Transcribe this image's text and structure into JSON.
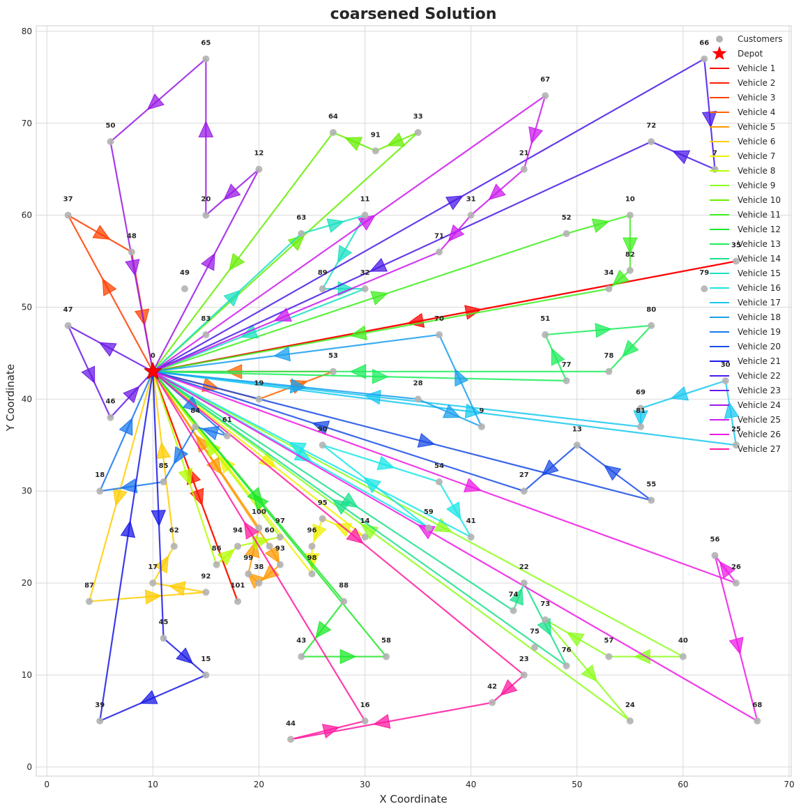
{
  "chart_data": {
    "type": "scatter",
    "title": "coarsened Solution",
    "xlabel": "X Coordinate",
    "ylabel": "Y Coordinate",
    "xlim": [
      -1,
      70.2
    ],
    "ylim": [
      -1,
      80.6
    ],
    "xticks": [
      0,
      10,
      20,
      30,
      40,
      50,
      60,
      70
    ],
    "yticks": [
      0,
      10,
      20,
      30,
      40,
      50,
      60,
      70,
      80
    ],
    "grid": true,
    "legend_position": "top-right",
    "depot": {
      "label": "Depot",
      "id": "0",
      "x": 10,
      "y": 43,
      "color": "#ff0000"
    },
    "customer_series": {
      "name": "Customers",
      "color": "#b3b3b3"
    },
    "customers": [
      {
        "id": "65",
        "x": 15,
        "y": 77
      },
      {
        "id": "66",
        "x": 62,
        "y": 77
      },
      {
        "id": "67",
        "x": 47,
        "y": 73
      },
      {
        "id": "50",
        "x": 6,
        "y": 68
      },
      {
        "id": "64",
        "x": 27,
        "y": 69
      },
      {
        "id": "33",
        "x": 35,
        "y": 69
      },
      {
        "id": "91",
        "x": 31,
        "y": 67
      },
      {
        "id": "72",
        "x": 57,
        "y": 68
      },
      {
        "id": "12",
        "x": 20,
        "y": 65
      },
      {
        "id": "21",
        "x": 45,
        "y": 65
      },
      {
        "id": "7",
        "x": 63,
        "y": 65
      },
      {
        "id": "37",
        "x": 2,
        "y": 60
      },
      {
        "id": "20",
        "x": 15,
        "y": 60
      },
      {
        "id": "63",
        "x": 24,
        "y": 58
      },
      {
        "id": "11",
        "x": 30,
        "y": 60
      },
      {
        "id": "31",
        "x": 40,
        "y": 60
      },
      {
        "id": "52",
        "x": 49,
        "y": 58
      },
      {
        "id": "10",
        "x": 55,
        "y": 60
      },
      {
        "id": "48",
        "x": 8,
        "y": 56
      },
      {
        "id": "71",
        "x": 37,
        "y": 56
      },
      {
        "id": "82",
        "x": 55,
        "y": 54
      },
      {
        "id": "35",
        "x": 65,
        "y": 55
      },
      {
        "id": "49",
        "x": 13,
        "y": 52
      },
      {
        "id": "89",
        "x": 26,
        "y": 52
      },
      {
        "id": "32",
        "x": 30,
        "y": 52
      },
      {
        "id": "34",
        "x": 53,
        "y": 52
      },
      {
        "id": "79",
        "x": 62,
        "y": 52
      },
      {
        "id": "47",
        "x": 2,
        "y": 48
      },
      {
        "id": "83",
        "x": 15,
        "y": 47
      },
      {
        "id": "70",
        "x": 37,
        "y": 47
      },
      {
        "id": "51",
        "x": 47,
        "y": 47
      },
      {
        "id": "80",
        "x": 57,
        "y": 48
      },
      {
        "id": "53",
        "x": 27,
        "y": 43
      },
      {
        "id": "77",
        "x": 49,
        "y": 42
      },
      {
        "id": "78",
        "x": 53,
        "y": 43
      },
      {
        "id": "30",
        "x": 64,
        "y": 42
      },
      {
        "id": "19",
        "x": 20,
        "y": 40
      },
      {
        "id": "28",
        "x": 35,
        "y": 40
      },
      {
        "id": "69",
        "x": 56,
        "y": 39
      },
      {
        "id": "46",
        "x": 6,
        "y": 38
      },
      {
        "id": "9",
        "x": 41,
        "y": 37
      },
      {
        "id": "81",
        "x": 56,
        "y": 37
      },
      {
        "id": "84",
        "x": 14,
        "y": 37
      },
      {
        "id": "61",
        "x": 17,
        "y": 36
      },
      {
        "id": "90",
        "x": 26,
        "y": 35
      },
      {
        "id": "13",
        "x": 50,
        "y": 35
      },
      {
        "id": "25",
        "x": 65,
        "y": 35
      },
      {
        "id": "85",
        "x": 11,
        "y": 31
      },
      {
        "id": "54",
        "x": 37,
        "y": 31
      },
      {
        "id": "18",
        "x": 5,
        "y": 30
      },
      {
        "id": "27",
        "x": 45,
        "y": 30
      },
      {
        "id": "55",
        "x": 57,
        "y": 29
      },
      {
        "id": "97",
        "x": 22,
        "y": 25
      },
      {
        "id": "100",
        "x": 20,
        "y": 26
      },
      {
        "id": "95",
        "x": 26,
        "y": 27
      },
      {
        "id": "59",
        "x": 36,
        "y": 26
      },
      {
        "id": "41",
        "x": 40,
        "y": 25
      },
      {
        "id": "14",
        "x": 30,
        "y": 25
      },
      {
        "id": "62",
        "x": 12,
        "y": 24
      },
      {
        "id": "60",
        "x": 21,
        "y": 24
      },
      {
        "id": "94",
        "x": 18,
        "y": 24
      },
      {
        "id": "96",
        "x": 25,
        "y": 24
      },
      {
        "id": "56",
        "x": 63,
        "y": 23
      },
      {
        "id": "86",
        "x": 16,
        "y": 22
      },
      {
        "id": "93",
        "x": 22,
        "y": 22
      },
      {
        "id": "99",
        "x": 19,
        "y": 21
      },
      {
        "id": "98",
        "x": 25,
        "y": 21
      },
      {
        "id": "38",
        "x": 20,
        "y": 20
      },
      {
        "id": "26",
        "x": 65,
        "y": 20
      },
      {
        "id": "17",
        "x": 10,
        "y": 20
      },
      {
        "id": "92",
        "x": 15,
        "y": 19
      },
      {
        "id": "22",
        "x": 45,
        "y": 20
      },
      {
        "id": "87",
        "x": 4,
        "y": 18
      },
      {
        "id": "101",
        "x": 18,
        "y": 18
      },
      {
        "id": "88",
        "x": 28,
        "y": 18
      },
      {
        "id": "74",
        "x": 44,
        "y": 17
      },
      {
        "id": "73",
        "x": 47,
        "y": 16
      },
      {
        "id": "45",
        "x": 11,
        "y": 14
      },
      {
        "id": "75",
        "x": 46,
        "y": 13
      },
      {
        "id": "43",
        "x": 24,
        "y": 12
      },
      {
        "id": "58",
        "x": 32,
        "y": 12
      },
      {
        "id": "57",
        "x": 53,
        "y": 12
      },
      {
        "id": "40",
        "x": 60,
        "y": 12
      },
      {
        "id": "76",
        "x": 49,
        "y": 11
      },
      {
        "id": "15",
        "x": 15,
        "y": 10
      },
      {
        "id": "23",
        "x": 45,
        "y": 10
      },
      {
        "id": "42",
        "x": 42,
        "y": 7
      },
      {
        "id": "39",
        "x": 5,
        "y": 5
      },
      {
        "id": "16",
        "x": 30,
        "y": 5
      },
      {
        "id": "24",
        "x": 55,
        "y": 5
      },
      {
        "id": "68",
        "x": 67,
        "y": 5
      },
      {
        "id": "44",
        "x": 23,
        "y": 3
      }
    ],
    "series": [
      {
        "name": "Vehicle 1",
        "color": "#ff0000",
        "route": [
          "0",
          "35",
          "0"
        ]
      },
      {
        "name": "Vehicle 2",
        "color": "#ff1a00",
        "route": [
          "0",
          "101",
          "0"
        ]
      },
      {
        "name": "Vehicle 3",
        "color": "#ff4000",
        "route": [
          "0",
          "37",
          "48",
          "0"
        ]
      },
      {
        "name": "Vehicle 4",
        "color": "#ff6600",
        "route": [
          "0",
          "19",
          "53",
          "0"
        ]
      },
      {
        "name": "Vehicle 5",
        "color": "#ff9900",
        "route": [
          "0",
          "60",
          "93",
          "38",
          "99",
          "100",
          "0"
        ]
      },
      {
        "name": "Vehicle 6",
        "color": "#ffcc00",
        "route": [
          "0",
          "87",
          "92",
          "17",
          "62",
          "0"
        ]
      },
      {
        "name": "Vehicle 7",
        "color": "#f0f000",
        "route": [
          "0",
          "14",
          "95",
          "96",
          "98",
          "0"
        ]
      },
      {
        "name": "Vehicle 8",
        "color": "#b3ff00",
        "route": [
          "0",
          "86",
          "94",
          "97",
          "0"
        ]
      },
      {
        "name": "Vehicle 9",
        "color": "#8cff1a",
        "route": [
          "0",
          "40",
          "57",
          "73",
          "24",
          "0"
        ]
      },
      {
        "name": "Vehicle 10",
        "color": "#66ee00",
        "route": [
          "0",
          "33",
          "91",
          "64",
          "0"
        ]
      },
      {
        "name": "Vehicle 11",
        "color": "#40ee20",
        "route": [
          "0",
          "52",
          "10",
          "82",
          "34",
          "0"
        ]
      },
      {
        "name": "Vehicle 12",
        "color": "#1ee82a",
        "route": [
          "0",
          "88",
          "43",
          "58",
          "0"
        ]
      },
      {
        "name": "Vehicle 13",
        "color": "#1aee5a",
        "route": [
          "0",
          "77",
          "51",
          "80",
          "78",
          "0"
        ]
      },
      {
        "name": "Vehicle 14",
        "color": "#1ae08c",
        "route": [
          "0",
          "74",
          "22",
          "76",
          "0"
        ]
      },
      {
        "name": "Vehicle 15",
        "color": "#1ae0c0",
        "route": [
          "0",
          "63",
          "11",
          "89",
          "32",
          "0"
        ]
      },
      {
        "name": "Vehicle 16",
        "color": "#1ae6e6",
        "route": [
          "0",
          "59",
          "90",
          "54",
          "41",
          "0"
        ]
      },
      {
        "name": "Vehicle 17",
        "color": "#1ac8f0",
        "route": [
          "0",
          "25",
          "30",
          "69",
          "81",
          "0"
        ]
      },
      {
        "name": "Vehicle 18",
        "color": "#1aa0ee",
        "route": [
          "0",
          "28",
          "9",
          "70",
          "0"
        ]
      },
      {
        "name": "Vehicle 19",
        "color": "#1a78ee",
        "route": [
          "0",
          "61",
          "84",
          "85",
          "18",
          "0"
        ]
      },
      {
        "name": "Vehicle 20",
        "color": "#1a4ce6",
        "route": [
          "0",
          "55",
          "13",
          "27",
          "0"
        ]
      },
      {
        "name": "Vehicle 21",
        "color": "#1a1ae6",
        "route": [
          "0",
          "45",
          "15",
          "39",
          "0"
        ]
      },
      {
        "name": "Vehicle 22",
        "color": "#4a1ae6",
        "route": [
          "0",
          "66",
          "7",
          "72",
          "0"
        ]
      },
      {
        "name": "Vehicle 23",
        "color": "#6a1ae6",
        "route": [
          "0",
          "47",
          "46",
          "0"
        ]
      },
      {
        "name": "Vehicle 24",
        "color": "#9a1ae6",
        "route": [
          "0",
          "12",
          "20",
          "65",
          "50",
          "0"
        ]
      },
      {
        "name": "Vehicle 25",
        "color": "#cc1aee",
        "route": [
          "0",
          "67",
          "21",
          "31",
          "71",
          "0"
        ]
      },
      {
        "name": "Vehicle 26",
        "color": "#ee1ae6",
        "route": [
          "0",
          "26",
          "56",
          "68",
          "0"
        ]
      },
      {
        "name": "Vehicle 27",
        "color": "#ff1aa0",
        "route": [
          "0",
          "23",
          "42",
          "44",
          "16",
          "0"
        ]
      }
    ]
  }
}
